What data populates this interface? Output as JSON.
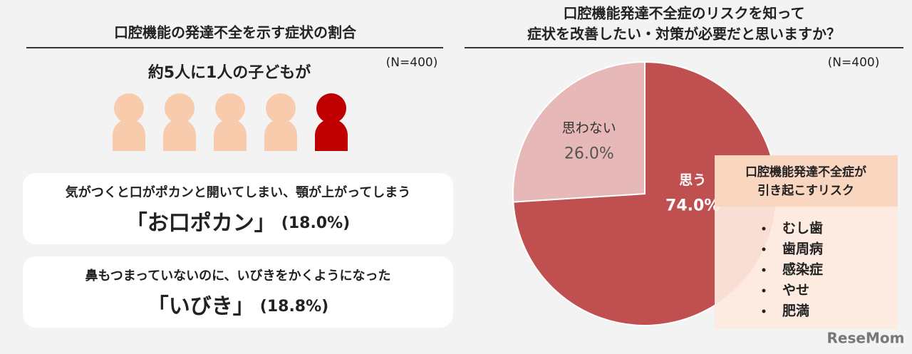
{
  "left_panel": {
    "title": "口腔機能の発達不全を示す症状の割合",
    "sample": "(N=400)",
    "headline": "約5人に1人の子どもが",
    "cards": [
      {
        "description": "気がつくと口がポカンと開いてしまい、顎が上がってしまう",
        "name": "「お口ポカン」",
        "share": "(18.0%)"
      },
      {
        "description": "鼻もつまっていないのに、いびきをかくようになった",
        "name": "「いびき」",
        "share": "(18.8%)"
      }
    ]
  },
  "chart_data": {
    "type": "pie",
    "title": [
      "口腔機能発達不全症のリスクを知って",
      "症状を改善したい・対策が必要だと思いますか？"
    ],
    "sample": "(N=400)",
    "categories": [
      "思う",
      "思わない"
    ],
    "values": [
      74.0,
      26.0
    ],
    "value_labels": [
      "74.0%",
      "26.0%"
    ],
    "colors": [
      "#c0504f",
      "#e6b8b7"
    ],
    "risk_box": {
      "title": [
        "口腔機能発達不全症が",
        "引き起こすリスク"
      ],
      "items": [
        "むし歯",
        "歯周病",
        "感染症",
        "やせ",
        "肥満"
      ]
    }
  },
  "watermark": "ReseMom"
}
